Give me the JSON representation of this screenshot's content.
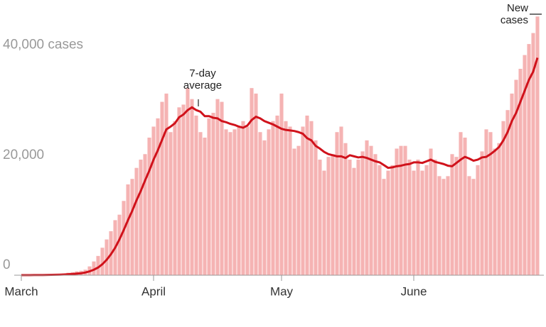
{
  "chart_data": {
    "type": "bar_line",
    "x": [
      0,
      1,
      2,
      3,
      4,
      5,
      6,
      7,
      8,
      9,
      10,
      11,
      12,
      13,
      14,
      15,
      16,
      17,
      18,
      19,
      20,
      21,
      22,
      23,
      24,
      25,
      26,
      27,
      28,
      29,
      30,
      31,
      32,
      33,
      34,
      35,
      36,
      37,
      38,
      39,
      40,
      41,
      42,
      43,
      44,
      45,
      46,
      47,
      48,
      49,
      50,
      51,
      52,
      53,
      54,
      55,
      56,
      57,
      58,
      59,
      60,
      61,
      62,
      63,
      64,
      65,
      66,
      67,
      68,
      69,
      70,
      71,
      72,
      73,
      74,
      75,
      76,
      77,
      78,
      79,
      80,
      81,
      82,
      83,
      84,
      85,
      86,
      87,
      88,
      89,
      90,
      91,
      92,
      93,
      94,
      95,
      96,
      97,
      98,
      99,
      100,
      101,
      102,
      103,
      104,
      105,
      106,
      107,
      108,
      109,
      110,
      111,
      112,
      113,
      114,
      115,
      116,
      117,
      118,
      119,
      120,
      121
    ],
    "series": [
      {
        "name": "New cases",
        "color": "#f5b3b3",
        "values": [
          10,
          20,
          30,
          40,
          60,
          80,
          100,
          150,
          150,
          250,
          300,
          450,
          550,
          700,
          800,
          1000,
          1600,
          2500,
          3500,
          5000,
          6500,
          8000,
          10000,
          11000,
          13500,
          16500,
          17500,
          19500,
          21000,
          22000,
          25000,
          27000,
          28500,
          31500,
          33000,
          26000,
          28000,
          30500,
          31000,
          34000,
          32000,
          29000,
          26000,
          25000,
          28500,
          29500,
          32000,
          31500,
          26500,
          26000,
          26500,
          27000,
          28000,
          27000,
          34000,
          33000,
          26000,
          24500,
          26500,
          28000,
          29000,
          33000,
          28000,
          27000,
          23000,
          23500,
          27000,
          29000,
          28000,
          24500,
          21000,
          19000,
          21500,
          22000,
          26000,
          27000,
          24000,
          21000,
          19500,
          21000,
          22500,
          24500,
          23500,
          22000,
          20000,
          17500,
          19000,
          20000,
          23000,
          23500,
          23500,
          21000,
          19000,
          21000,
          19000,
          20000,
          23000,
          21000,
          18000,
          17500,
          18000,
          22000,
          21500,
          26000,
          25000,
          18000,
          17500,
          20000,
          22500,
          26500,
          26000,
          23000,
          24000,
          28000,
          30000,
          33000,
          35500,
          37500,
          40000,
          42000,
          44000,
          47000
        ]
      },
      {
        "name": "7-day average",
        "color": "#d0121b",
        "values": [
          10,
          15,
          20,
          25,
          30,
          40,
          50,
          65,
          80,
          105,
          130,
          170,
          220,
          290,
          360,
          490,
          700,
          1000,
          1400,
          2000,
          2800,
          3800,
          5000,
          6500,
          8200,
          10000,
          11700,
          13600,
          15300,
          17200,
          19000,
          21000,
          22700,
          24600,
          26500,
          27000,
          27600,
          28700,
          29200,
          30000,
          30500,
          30000,
          29700,
          28900,
          28900,
          28600,
          28500,
          28000,
          27800,
          27500,
          27300,
          27000,
          26800,
          27200,
          28200,
          28800,
          28500,
          28000,
          27700,
          27400,
          27000,
          26600,
          26400,
          26300,
          26200,
          26000,
          25700,
          24900,
          24500,
          23500,
          23000,
          22400,
          22000,
          21800,
          21600,
          21600,
          21300,
          21800,
          21600,
          21400,
          21500,
          21300,
          21000,
          20700,
          20500,
          20000,
          19500,
          19600,
          19800,
          19900,
          20100,
          20200,
          20500,
          20500,
          20400,
          20700,
          21000,
          20600,
          20400,
          20200,
          19900,
          19800,
          20400,
          21000,
          21500,
          21200,
          20800,
          21000,
          21400,
          21500,
          22000,
          22600,
          23300,
          24500,
          26000,
          28000,
          29500,
          31500,
          33500,
          35500,
          37000,
          39500
        ]
      }
    ],
    "xlim": [
      -1,
      122
    ],
    "xticks": [
      {
        "value": 0,
        "label": "March"
      },
      {
        "value": 31,
        "label": "April"
      },
      {
        "value": 61,
        "label": "May"
      },
      {
        "value": 92,
        "label": "June"
      }
    ],
    "ylim": [
      0,
      50000
    ],
    "yticks": [
      0,
      {
        "value": 20000,
        "label": "20,000"
      },
      {
        "value": 40000,
        "label": "40,000 cases"
      }
    ],
    "grid": false
  }
}
